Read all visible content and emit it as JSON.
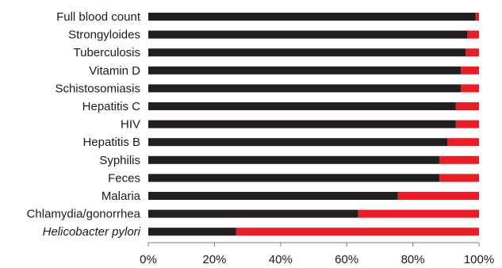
{
  "chart_data": {
    "type": "bar",
    "orientation": "horizontal",
    "stacked": true,
    "categories": [
      "Full blood count",
      "Strongyloides",
      "Tuberculosis",
      "Vitamin D",
      "Schistosomiasis",
      "Hepatitis C",
      "HIV",
      "Hepatitis B",
      "Syphilis",
      "Feces",
      "Malaria",
      "Chlamydia/gonorrhea",
      "Helicobacter pylori"
    ],
    "italic_categories": [
      "Helicobacter pylori"
    ],
    "series": [
      {
        "color": "#231f20",
        "values": [
          99,
          96.5,
          96,
          94.5,
          94.5,
          93,
          93,
          90.5,
          88,
          88,
          75.5,
          63.5,
          26.5
        ]
      },
      {
        "color": "#ed1c24",
        "values": [
          1,
          3.5,
          4,
          5.5,
          5.5,
          7,
          7,
          9.5,
          12,
          12,
          24.5,
          36.5,
          73.5
        ]
      }
    ],
    "xlim": [
      0,
      100
    ],
    "x_ticks": [
      "0%",
      "20%",
      "40%",
      "60%",
      "80%",
      "100%"
    ],
    "x_tick_values": [
      0,
      20,
      40,
      60,
      80,
      100
    ],
    "xlabel": "",
    "ylabel": "",
    "title": "",
    "grid": false,
    "legend": "none"
  }
}
